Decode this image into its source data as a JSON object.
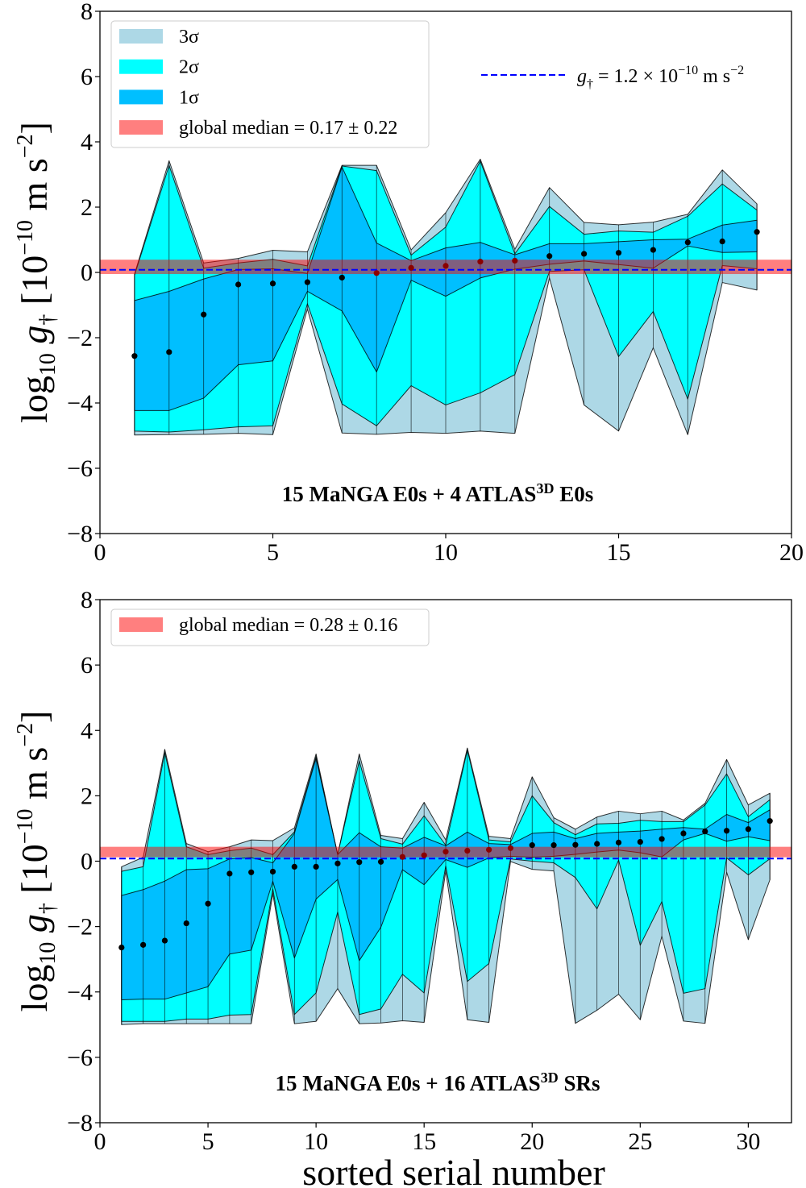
{
  "colors": {
    "sigma3": "#add8e6",
    "sigma2": "#00ffff",
    "sigma1": "#00bfff",
    "median_band": "#ff0000",
    "gdagger_line": "#0000ff",
    "point": "#000000",
    "point_in_band": "#8b0000"
  },
  "chart_data": [
    {
      "type": "area",
      "title": "",
      "annotation": {
        "parts": [
          "15 MaNGA E0s + 4 ATLAS",
          "3D",
          " E0s"
        ]
      },
      "xlabel": "",
      "ylabel": {
        "parts": [
          "log",
          "10",
          " g",
          "†",
          " [10",
          "−10",
          " m s",
          "−2",
          "]"
        ]
      },
      "xlim": [
        0,
        20
      ],
      "ylim": [
        -8,
        8
      ],
      "xticks": [
        0,
        5,
        10,
        15,
        20
      ],
      "yticks": [
        -8,
        -6,
        -4,
        -2,
        0,
        2,
        4,
        6,
        8
      ],
      "xtick_labels": [
        "0",
        "5",
        "10",
        "15",
        "20"
      ],
      "ytick_labels": [
        "−8",
        "−6",
        "−4",
        "−2",
        "0",
        "2",
        "4",
        "6",
        "8"
      ],
      "legend": {
        "placement": "top-left",
        "items": [
          {
            "label": "3σ",
            "color_key": "sigma3"
          },
          {
            "label": "2σ",
            "color_key": "sigma2"
          },
          {
            "label": "1σ",
            "color_key": "sigma1"
          },
          {
            "label": "global median  = 0.17 ± 0.22",
            "color_key": "median_band"
          }
        ]
      },
      "legend2": {
        "placement": "top-right",
        "parts": [
          "g",
          "†",
          " = 1.2 × 10",
          "−10",
          " m s",
          "−2"
        ]
      },
      "global_median": {
        "value": 0.17,
        "error": 0.22
      },
      "gdagger_log": 0.079,
      "x": [
        1,
        2,
        3,
        4,
        5,
        6,
        7,
        8,
        9,
        10,
        11,
        12,
        13,
        14,
        15,
        16,
        17,
        18,
        19
      ],
      "median": [
        -2.56,
        -2.44,
        -1.29,
        -0.37,
        -0.34,
        -0.3,
        -0.16,
        -0.02,
        0.14,
        0.2,
        0.33,
        0.36,
        0.5,
        0.57,
        0.6,
        0.69,
        0.92,
        0.95,
        1.24
      ],
      "sigma3_upper": [
        -0.05,
        3.42,
        0.29,
        0.43,
        0.68,
        0.63,
        3.28,
        3.28,
        0.69,
        1.83,
        3.47,
        0.71,
        2.6,
        1.53,
        1.46,
        1.54,
        1.78,
        3.14,
        2.1
      ],
      "sigma2_upper": [
        -0.09,
        3.28,
        0.13,
        0.29,
        0.4,
        0.2,
        3.26,
        3.12,
        0.53,
        1.39,
        3.41,
        0.57,
        2.02,
        1.17,
        1.27,
        1.23,
        1.72,
        2.71,
        1.91
      ],
      "sigma1_upper": [
        -0.86,
        -0.58,
        -0.2,
        0.09,
        0.11,
        -0.03,
        3.23,
        0.9,
        0.36,
        0.75,
        0.92,
        0.54,
        0.88,
        0.88,
        0.94,
        1.0,
        1.02,
        1.45,
        1.6
      ],
      "sigma1_lower": [
        -4.23,
        -4.23,
        -3.85,
        -2.83,
        -2.71,
        -0.58,
        -1.18,
        -3.05,
        -0.24,
        -0.73,
        -0.17,
        0.1,
        0.25,
        0.35,
        0.24,
        0.13,
        0.81,
        0.61,
        0.63
      ],
      "sigma2_lower": [
        -4.86,
        -4.89,
        -4.82,
        -4.73,
        -4.7,
        -0.96,
        -4.03,
        -4.7,
        -3.47,
        -4.06,
        -3.69,
        -3.13,
        0.03,
        0.08,
        -2.58,
        -1.2,
        -3.88,
        0.21,
        0.11
      ],
      "sigma3_lower": [
        -4.98,
        -4.97,
        -4.96,
        -4.93,
        -4.97,
        -1.12,
        -4.92,
        -4.96,
        -4.9,
        -4.93,
        -4.86,
        -4.93,
        -0.17,
        -4.06,
        -4.86,
        -2.31,
        -4.97,
        -0.31,
        -0.54
      ]
    },
    {
      "type": "area",
      "title": "",
      "annotation": {
        "parts": [
          "15 MaNGA E0s + 16 ATLAS",
          "3D",
          " SRs"
        ]
      },
      "xlabel": "sorted serial number",
      "ylabel": {
        "parts": [
          "log",
          "10",
          " g",
          "†",
          " [10",
          "−10",
          " m s",
          "−2",
          "]"
        ]
      },
      "xlim": [
        0,
        32
      ],
      "ylim": [
        -8,
        8
      ],
      "xticks": [
        0,
        5,
        10,
        15,
        20,
        25,
        30
      ],
      "yticks": [
        -8,
        -6,
        -4,
        -2,
        0,
        2,
        4,
        6,
        8
      ],
      "xtick_labels": [
        "0",
        "5",
        "10",
        "15",
        "20",
        "25",
        "30"
      ],
      "ytick_labels": [
        "−8",
        "−6",
        "−4",
        "−2",
        "0",
        "2",
        "4",
        "6",
        "8"
      ],
      "legend": {
        "placement": "top-left",
        "items": [
          {
            "label": "global median  = 0.28 ± 0.16",
            "color_key": "median_band"
          }
        ]
      },
      "global_median": {
        "value": 0.28,
        "error": 0.16
      },
      "gdagger_log": 0.079,
      "x": [
        1,
        2,
        3,
        4,
        5,
        6,
        7,
        8,
        9,
        10,
        11,
        12,
        13,
        14,
        15,
        16,
        17,
        18,
        19,
        20,
        21,
        22,
        23,
        24,
        25,
        26,
        27,
        28,
        29,
        30,
        31
      ],
      "median": [
        -2.64,
        -2.56,
        -2.43,
        -1.9,
        -1.3,
        -0.38,
        -0.34,
        -0.32,
        -0.17,
        -0.17,
        -0.07,
        -0.03,
        -0.02,
        0.13,
        0.18,
        0.29,
        0.32,
        0.35,
        0.4,
        0.49,
        0.49,
        0.5,
        0.53,
        0.57,
        0.59,
        0.68,
        0.85,
        0.91,
        0.93,
        0.98,
        1.23
      ],
      "sigma3_upper": [
        -0.17,
        0.12,
        3.42,
        0.54,
        0.29,
        0.44,
        0.65,
        0.63,
        1.02,
        3.28,
        0.2,
        3.28,
        0.79,
        0.69,
        1.8,
        0.65,
        3.46,
        0.76,
        0.69,
        2.58,
        1.33,
        0.98,
        1.35,
        1.53,
        1.45,
        1.53,
        1.26,
        1.77,
        3.11,
        1.72,
        2.08
      ],
      "sigma2_upper": [
        -0.31,
        -0.17,
        3.32,
        0.44,
        0.2,
        0.32,
        0.4,
        0.2,
        0.9,
        3.2,
        0.2,
        3.07,
        0.69,
        0.52,
        1.39,
        0.49,
        3.4,
        0.65,
        0.59,
        2.0,
        1.18,
        0.81,
        1.14,
        1.16,
        1.25,
        1.21,
        1.21,
        1.72,
        2.67,
        1.36,
        1.88
      ],
      "sigma1_upper": [
        -1.05,
        -0.87,
        -0.61,
        -0.26,
        -0.23,
        0.07,
        0.11,
        -0.05,
        0.85,
        3.15,
        0.2,
        0.87,
        0.44,
        0.4,
        0.73,
        0.47,
        0.89,
        0.54,
        0.51,
        0.85,
        0.89,
        0.69,
        0.85,
        0.89,
        0.92,
        0.98,
        1.03,
        0.98,
        1.43,
        1.18,
        1.57
      ],
      "sigma1_lower": [
        -4.24,
        -4.22,
        -4.22,
        -4.03,
        -3.84,
        -2.84,
        -2.72,
        -0.62,
        -2.96,
        -1.16,
        -0.56,
        -3.04,
        -2.02,
        -0.26,
        -0.72,
        0.05,
        -0.19,
        0.1,
        0.15,
        0.12,
        0.15,
        0.21,
        0.28,
        0.34,
        0.26,
        0.13,
        0.65,
        0.85,
        0.61,
        0.75,
        0.63
      ],
      "sigma2_lower": [
        -4.9,
        -4.9,
        -4.9,
        -4.83,
        -4.83,
        -4.71,
        -4.69,
        -0.85,
        -4.69,
        -4.03,
        -1.56,
        -4.69,
        -4.52,
        -3.46,
        -4.03,
        -0.15,
        -3.68,
        -3.13,
        0.07,
        0.0,
        -0.05,
        -0.5,
        -1.46,
        0.03,
        -2.57,
        -1.24,
        -4.04,
        -3.9,
        0.1,
        -0.42,
        0.07
      ],
      "sigma3_lower": [
        -5.0,
        -4.97,
        -4.97,
        -4.97,
        -4.97,
        -4.97,
        -4.97,
        -1.0,
        -4.97,
        -4.9,
        -3.9,
        -4.97,
        -4.95,
        -4.88,
        -4.93,
        -0.3,
        -4.85,
        -4.93,
        -0.01,
        -0.25,
        -0.3,
        -4.96,
        -4.56,
        -4.07,
        -4.85,
        -2.3,
        -4.89,
        -4.96,
        -0.34,
        -2.4,
        -0.57
      ]
    }
  ]
}
